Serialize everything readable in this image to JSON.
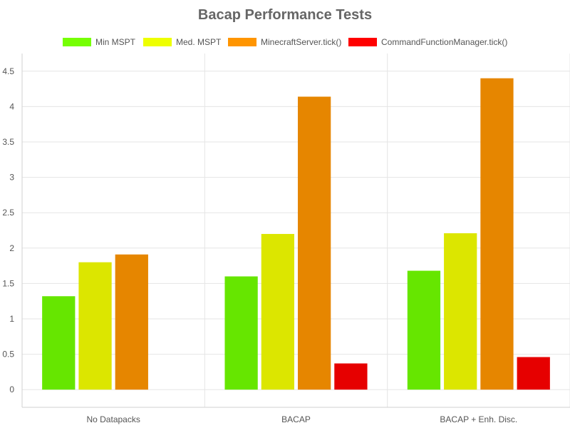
{
  "chart_data": {
    "type": "bar",
    "title": "Bacap Performance Tests",
    "categories": [
      "No Datapacks",
      "BACAP",
      "BACAP + Enh. Disc."
    ],
    "series": [
      {
        "name": "Min MSPT",
        "color": "#66e600",
        "legend_color": "#76ff03",
        "values": [
          1.32,
          1.6,
          1.68
        ]
      },
      {
        "name": "Med. MSPT",
        "color": "#dce600",
        "legend_color": "#eeff00",
        "values": [
          1.8,
          2.2,
          2.21
        ]
      },
      {
        "name": "MinecraftServer.tick()",
        "color": "#e68600",
        "legend_color": "#ff9500",
        "values": [
          1.91,
          4.14,
          4.4
        ]
      },
      {
        "name": "CommandFunctionManager.tick()",
        "color": "#e60000",
        "legend_color": "#ff0000",
        "values": [
          null,
          0.37,
          0.46
        ]
      }
    ],
    "y_ticks": [
      "0",
      "0.5",
      "1",
      "1.5",
      "2",
      "2.5",
      "3",
      "3.5",
      "4",
      "4.5"
    ],
    "ylim": [
      -0.25,
      4.75
    ],
    "grid": true,
    "legend_position": "top-center"
  }
}
